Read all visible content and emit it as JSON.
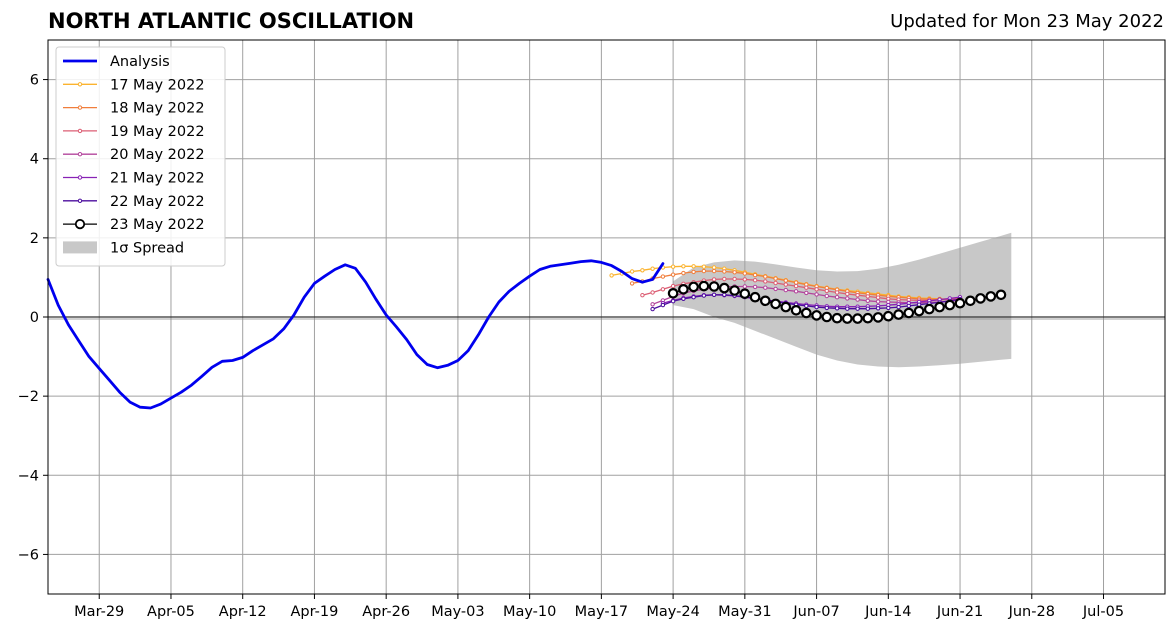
{
  "chart_data": {
    "type": "line",
    "title": "NORTH ATLANTIC OSCILLATION",
    "subtitle": "Updated for Mon 23 May 2022",
    "xlabel": "",
    "ylabel": "",
    "x_ticks": [
      "Mar-29",
      "Apr-05",
      "Apr-12",
      "Apr-19",
      "Apr-26",
      "May-03",
      "May-10",
      "May-17",
      "May-24",
      "May-31",
      "Jun-07",
      "Jun-14",
      "Jun-21",
      "Jun-28",
      "Jul-05"
    ],
    "y_ticks": [
      "6",
      "4",
      "2",
      "0",
      "−2",
      "−4",
      "−6"
    ],
    "xlim": [
      "2022-03-24",
      "2022-07-11"
    ],
    "ylim": [
      -7,
      7
    ],
    "grid": true,
    "legend_position": "top-left",
    "zero_line": 0,
    "series": [
      {
        "name": "Analysis",
        "color": "#0000ee",
        "marker": "none",
        "points": [
          [
            "2022-03-24",
            0.95
          ],
          [
            "2022-03-25",
            0.3
          ],
          [
            "2022-03-26",
            -0.2
          ],
          [
            "2022-03-27",
            -0.6
          ],
          [
            "2022-03-28",
            -1.0
          ],
          [
            "2022-03-29",
            -1.3
          ],
          [
            "2022-03-30",
            -1.6
          ],
          [
            "2022-03-31",
            -1.9
          ],
          [
            "2022-04-01",
            -2.15
          ],
          [
            "2022-04-02",
            -2.28
          ],
          [
            "2022-04-03",
            -2.3
          ],
          [
            "2022-04-04",
            -2.2
          ],
          [
            "2022-04-05",
            -2.05
          ],
          [
            "2022-04-06",
            -1.9
          ],
          [
            "2022-04-07",
            -1.72
          ],
          [
            "2022-04-08",
            -1.5
          ],
          [
            "2022-04-09",
            -1.27
          ],
          [
            "2022-04-10",
            -1.12
          ],
          [
            "2022-04-11",
            -1.1
          ],
          [
            "2022-04-12",
            -1.02
          ],
          [
            "2022-04-13",
            -0.85
          ],
          [
            "2022-04-14",
            -0.7
          ],
          [
            "2022-04-15",
            -0.55
          ],
          [
            "2022-04-16",
            -0.3
          ],
          [
            "2022-04-17",
            0.05
          ],
          [
            "2022-04-18",
            0.5
          ],
          [
            "2022-04-19",
            0.85
          ],
          [
            "2022-04-20",
            1.03
          ],
          [
            "2022-04-21",
            1.2
          ],
          [
            "2022-04-22",
            1.32
          ],
          [
            "2022-04-23",
            1.23
          ],
          [
            "2022-04-24",
            0.88
          ],
          [
            "2022-04-25",
            0.45
          ],
          [
            "2022-04-26",
            0.05
          ],
          [
            "2022-04-27",
            -0.25
          ],
          [
            "2022-04-28",
            -0.57
          ],
          [
            "2022-04-29",
            -0.95
          ],
          [
            "2022-04-30",
            -1.2
          ],
          [
            "2022-05-01",
            -1.28
          ],
          [
            "2022-05-02",
            -1.22
          ],
          [
            "2022-05-03",
            -1.1
          ],
          [
            "2022-05-04",
            -0.85
          ],
          [
            "2022-05-05",
            -0.45
          ],
          [
            "2022-05-06",
            0.0
          ],
          [
            "2022-05-07",
            0.38
          ],
          [
            "2022-05-08",
            0.65
          ],
          [
            "2022-05-09",
            0.85
          ],
          [
            "2022-05-10",
            1.03
          ],
          [
            "2022-05-11",
            1.2
          ],
          [
            "2022-05-12",
            1.28
          ],
          [
            "2022-05-13",
            1.32
          ],
          [
            "2022-05-14",
            1.36
          ],
          [
            "2022-05-15",
            1.4
          ],
          [
            "2022-05-16",
            1.42
          ],
          [
            "2022-05-17",
            1.38
          ],
          [
            "2022-05-18",
            1.3
          ],
          [
            "2022-05-19",
            1.15
          ],
          [
            "2022-05-20",
            0.97
          ],
          [
            "2022-05-21",
            0.88
          ],
          [
            "2022-05-22",
            0.95
          ],
          [
            "2022-05-23",
            1.35
          ]
        ]
      },
      {
        "name": "17 May 2022",
        "color": "#fbb32e",
        "marker": "small",
        "start": "2022-05-18",
        "values": [
          1.05,
          1.1,
          1.15,
          1.18,
          1.22,
          1.25,
          1.27,
          1.28,
          1.28,
          1.27,
          1.25,
          1.22,
          1.18,
          1.13,
          1.08,
          1.03,
          0.98,
          0.93,
          0.88,
          0.83,
          0.78,
          0.74,
          0.7,
          0.67,
          0.64,
          0.61,
          0.58,
          0.55,
          0.52,
          0.5,
          0.48,
          0.47,
          0.46,
          0.45,
          0.46
        ]
      },
      {
        "name": "18 May 2022",
        "color": "#f07e3c",
        "marker": "small",
        "start": "2022-05-20",
        "values": [
          0.85,
          0.9,
          0.97,
          1.02,
          1.07,
          1.11,
          1.14,
          1.16,
          1.16,
          1.15,
          1.13,
          1.1,
          1.06,
          1.02,
          0.97,
          0.92,
          0.87,
          0.82,
          0.77,
          0.73,
          0.69,
          0.65,
          0.61,
          0.58,
          0.55,
          0.52,
          0.5,
          0.48,
          0.46,
          0.45,
          0.45,
          0.45,
          0.46
        ]
      },
      {
        "name": "19 May 2022",
        "color": "#dc5e74",
        "marker": "small",
        "start": "2022-05-21",
        "values": [
          0.55,
          0.62,
          0.7,
          0.78,
          0.84,
          0.88,
          0.92,
          0.95,
          0.96,
          0.96,
          0.95,
          0.93,
          0.9,
          0.86,
          0.82,
          0.78,
          0.74,
          0.7,
          0.66,
          0.62,
          0.58,
          0.55,
          0.52,
          0.49,
          0.46,
          0.44,
          0.43,
          0.42,
          0.42,
          0.43,
          0.45,
          0.47
        ]
      },
      {
        "name": "20 May 2022",
        "color": "#b3449c",
        "marker": "small",
        "start": "2022-05-22",
        "values": [
          0.32,
          0.42,
          0.52,
          0.6,
          0.66,
          0.7,
          0.74,
          0.76,
          0.77,
          0.77,
          0.76,
          0.74,
          0.71,
          0.68,
          0.65,
          0.61,
          0.57,
          0.53,
          0.5,
          0.47,
          0.44,
          0.41,
          0.39,
          0.38,
          0.37,
          0.36,
          0.36,
          0.37,
          0.38,
          0.4,
          0.42
        ]
      },
      {
        "name": "21 May 2022",
        "color": "#8822b5",
        "marker": "small",
        "start": "2022-05-23",
        "values": [
          0.35,
          0.42,
          0.48,
          0.52,
          0.55,
          0.56,
          0.55,
          0.53,
          0.5,
          0.46,
          0.43,
          0.4,
          0.37,
          0.34,
          0.31,
          0.29,
          0.27,
          0.26,
          0.26,
          0.26,
          0.27,
          0.28,
          0.3,
          0.32,
          0.35,
          0.38,
          0.41,
          0.44,
          0.47,
          0.5
        ]
      },
      {
        "name": "22 May 2022",
        "color": "#4b0d9e",
        "marker": "small",
        "start": "2022-05-22",
        "values": [
          0.2,
          0.3,
          0.4,
          0.46,
          0.5,
          0.54,
          0.56,
          0.56,
          0.54,
          0.51,
          0.47,
          0.43,
          0.39,
          0.35,
          0.31,
          0.28,
          0.25,
          0.23,
          0.22,
          0.21,
          0.21,
          0.21,
          0.22,
          0.23,
          0.25,
          0.28,
          0.31,
          0.34,
          0.37,
          0.41,
          0.45
        ]
      },
      {
        "name": "23 May 2022",
        "color": "#000000",
        "marker": "large",
        "start": "2022-05-24",
        "values": [
          0.6,
          0.7,
          0.76,
          0.78,
          0.77,
          0.73,
          0.67,
          0.59,
          0.5,
          0.41,
          0.33,
          0.25,
          0.17,
          0.1,
          0.04,
          0.0,
          -0.03,
          -0.04,
          -0.04,
          -0.03,
          -0.01,
          0.02,
          0.06,
          0.1,
          0.15,
          0.2,
          0.25,
          0.3,
          0.35,
          0.41,
          0.47,
          0.52,
          0.56
        ]
      }
    ],
    "spread": {
      "name": "1σ Spread",
      "color": "#c8c8c8",
      "points": [
        [
          "2022-05-24",
          0.3,
          0.9
        ],
        [
          "2022-05-26",
          0.2,
          1.25
        ],
        [
          "2022-05-28",
          0.0,
          1.38
        ],
        [
          "2022-05-30",
          -0.15,
          1.43
        ],
        [
          "2022-06-01",
          -0.35,
          1.4
        ],
        [
          "2022-06-03",
          -0.55,
          1.33
        ],
        [
          "2022-06-05",
          -0.75,
          1.25
        ],
        [
          "2022-06-07",
          -0.95,
          1.18
        ],
        [
          "2022-06-09",
          -1.1,
          1.15
        ],
        [
          "2022-06-11",
          -1.2,
          1.16
        ],
        [
          "2022-06-13",
          -1.25,
          1.22
        ],
        [
          "2022-06-15",
          -1.27,
          1.32
        ],
        [
          "2022-06-17",
          -1.25,
          1.45
        ],
        [
          "2022-06-19",
          -1.22,
          1.6
        ],
        [
          "2022-06-21",
          -1.18,
          1.75
        ],
        [
          "2022-06-23",
          -1.13,
          1.9
        ],
        [
          "2022-06-25",
          -1.08,
          2.05
        ],
        [
          "2022-06-26",
          -1.06,
          2.13
        ]
      ]
    }
  }
}
